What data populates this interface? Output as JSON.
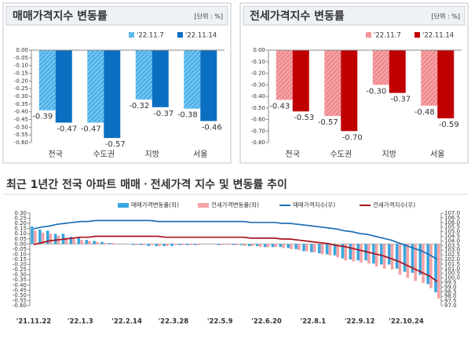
{
  "chart_data": [
    {
      "type": "bar",
      "title": "매매가격지수 변동률",
      "unit": "[단위 : %]",
      "categories": [
        "전국",
        "수도권",
        "지방",
        "서울"
      ],
      "series": [
        {
          "name": "'22.11.7",
          "color": "#4db2ea",
          "hatch": true,
          "values": [
            -0.39,
            -0.47,
            -0.32,
            -0.38
          ]
        },
        {
          "name": "'22.11.14",
          "color": "#0b6fc1",
          "values": [
            -0.47,
            -0.57,
            -0.37,
            -0.46
          ]
        }
      ],
      "ylim": [
        -0.6,
        0
      ],
      "yticks": [
        {
          "value": 0,
          "label": "0.00"
        },
        -0.05,
        {
          "value": -0.1,
          "label": "-0.10"
        },
        -0.15,
        {
          "value": -0.2,
          "label": "-0.20"
        },
        -0.25,
        {
          "value": -0.3,
          "label": "-0.30"
        },
        -0.35,
        {
          "value": -0.4,
          "label": "-0.40"
        },
        -0.45,
        {
          "value": -0.5,
          "label": "-0.50"
        },
        -0.55,
        {
          "value": -0.6,
          "label": "-0.60"
        }
      ]
    },
    {
      "type": "bar",
      "title": "전세가격지수 변동률",
      "unit": "[단위 : %]",
      "categories": [
        "전국",
        "수도권",
        "지방",
        "서울"
      ],
      "series": [
        {
          "name": "'22.11.7",
          "color": "#f08a8e",
          "hatch": true,
          "values": [
            -0.43,
            -0.57,
            -0.3,
            -0.48
          ],
          "value_labels": [
            "-0.43",
            "-0.57",
            "-0.30",
            "-0.48"
          ]
        },
        {
          "name": "'22.11.14",
          "color": "#c00000",
          "values": [
            -0.53,
            -0.7,
            -0.37,
            -0.59
          ],
          "value_labels": [
            "-0.53",
            "-0.70",
            "-0.37",
            "-0.59"
          ]
        }
      ],
      "ylim": [
        -0.8,
        0
      ],
      "yticks": [
        {
          "value": 0,
          "label": "0.00"
        },
        {
          "value": -0.1,
          "label": "-0.10"
        },
        {
          "value": -0.2,
          "label": "-0.20"
        },
        {
          "value": -0.3,
          "label": "-0.30"
        },
        {
          "value": -0.4,
          "label": "-0.40"
        },
        {
          "value": -0.5,
          "label": "-0.50"
        },
        {
          "value": -0.6,
          "label": "-0.60"
        },
        {
          "value": -0.7,
          "label": "-0.70"
        },
        {
          "value": -0.8,
          "label": "-0.80"
        }
      ]
    },
    {
      "type": "combo",
      "title": "최근 1년간 전국 아파트 매매ㆍ전세가격 지수 및 변동률 추이",
      "categories": [
        "'21.11.22",
        null,
        null,
        null,
        null,
        null,
        "'22.1.3",
        null,
        null,
        null,
        null,
        null,
        "'22.2.14",
        null,
        null,
        null,
        null,
        null,
        "'22.3.28",
        null,
        null,
        null,
        null,
        null,
        "'22.5.9",
        null,
        null,
        null,
        null,
        null,
        "'22.6.20",
        null,
        null,
        null,
        null,
        null,
        "'22.8.1",
        null,
        null,
        null,
        null,
        null,
        "'22.9.12",
        null,
        null,
        null,
        null,
        null,
        "'22.10.24",
        null,
        null,
        null,
        null
      ],
      "series": [
        {
          "name": "매매가격변동률(좌)",
          "type": "bar",
          "color": "#3aa6de",
          "values": [
            0.17,
            0.14,
            0.13,
            0.1,
            0.1,
            0.07,
            0.06,
            0.04,
            0.03,
            0.02,
            0.01,
            0.0,
            0.0,
            -0.01,
            -0.01,
            -0.02,
            -0.02,
            -0.02,
            -0.02,
            -0.01,
            -0.01,
            -0.01,
            0.0,
            0.0,
            -0.01,
            0.0,
            -0.01,
            -0.01,
            -0.02,
            -0.02,
            -0.03,
            -0.03,
            -0.03,
            -0.04,
            -0.05,
            -0.07,
            -0.08,
            -0.09,
            -0.1,
            -0.11,
            -0.14,
            -0.15,
            -0.16,
            -0.16,
            -0.19,
            -0.2,
            -0.2,
            -0.24,
            -0.27,
            -0.28,
            -0.3,
            -0.39,
            -0.47
          ]
        },
        {
          "name": "전세가격변동률(좌)",
          "type": "bar",
          "color": "#f4a3a6",
          "values": [
            0.13,
            0.11,
            0.1,
            0.08,
            0.06,
            0.05,
            0.04,
            0.03,
            0.02,
            0.01,
            0.01,
            0.0,
            0.0,
            -0.01,
            -0.01,
            -0.01,
            -0.02,
            -0.02,
            -0.01,
            -0.01,
            -0.01,
            -0.01,
            0.0,
            0.0,
            -0.01,
            -0.01,
            -0.01,
            -0.02,
            -0.02,
            -0.03,
            -0.03,
            -0.03,
            -0.04,
            -0.05,
            -0.06,
            -0.07,
            -0.08,
            -0.1,
            -0.11,
            -0.13,
            -0.16,
            -0.17,
            -0.18,
            -0.19,
            -0.22,
            -0.24,
            -0.25,
            -0.3,
            -0.33,
            -0.36,
            -0.38,
            -0.43,
            -0.53
          ]
        },
        {
          "name": "매매가격지수(우)",
          "type": "line",
          "axis": "y2",
          "color": "#1f6fb5",
          "values": [
            105.3,
            105.5,
            105.6,
            105.8,
            105.9,
            106.0,
            106.1,
            106.1,
            106.2,
            106.2,
            106.2,
            106.2,
            106.2,
            106.2,
            106.2,
            106.2,
            106.1,
            106.1,
            106.1,
            106.1,
            106.1,
            106.1,
            106.1,
            106.1,
            106.1,
            106.1,
            106.1,
            106.1,
            106.0,
            106.0,
            106.0,
            106.0,
            105.9,
            105.9,
            105.8,
            105.7,
            105.6,
            105.5,
            105.4,
            105.3,
            105.1,
            105.0,
            104.8,
            104.7,
            104.5,
            104.3,
            104.1,
            103.8,
            103.5,
            103.2,
            102.9,
            102.5,
            102.0
          ]
        },
        {
          "name": "전세가격지수(우)",
          "type": "line",
          "axis": "y2",
          "color": "#a5141e",
          "values": [
            103.6,
            103.8,
            104.0,
            104.1,
            104.2,
            104.3,
            104.4,
            104.4,
            104.5,
            104.5,
            104.5,
            104.5,
            104.5,
            104.5,
            104.5,
            104.5,
            104.5,
            104.4,
            104.4,
            104.4,
            104.4,
            104.4,
            104.4,
            104.4,
            104.4,
            104.4,
            104.4,
            104.4,
            104.3,
            104.3,
            104.3,
            104.3,
            104.2,
            104.2,
            104.1,
            104.0,
            103.9,
            103.8,
            103.7,
            103.5,
            103.4,
            103.2,
            103.0,
            102.8,
            102.6,
            102.4,
            102.1,
            101.8,
            101.4,
            101.0,
            100.6,
            100.2,
            99.6
          ]
        }
      ],
      "ylim": [
        -0.6,
        0.3
      ],
      "yticks": [
        {
          "value": 0.3,
          "label": "0.30"
        },
        0.25,
        {
          "value": 0.2,
          "label": "0.20"
        },
        0.15,
        {
          "value": 0.1,
          "label": "0.10"
        },
        0.05,
        {
          "value": 0,
          "label": "0.00"
        },
        -0.05,
        {
          "value": -0.1,
          "label": "-0.10"
        },
        -0.15,
        {
          "value": -0.2,
          "label": "-0.20"
        },
        -0.25,
        {
          "value": -0.3,
          "label": "-0.30"
        },
        -0.35,
        {
          "value": -0.4,
          "label": "-0.40"
        },
        -0.45,
        {
          "value": -0.5,
          "label": "-0.50"
        },
        -0.55,
        {
          "value": -0.6,
          "label": "-0.60"
        }
      ],
      "y2lim": [
        97,
        107
      ],
      "y2ticks": [
        {
          "value": 107,
          "label": "107.0"
        },
        106.5,
        {
          "value": 106,
          "label": "106.0"
        },
        105.5,
        {
          "value": 105,
          "label": "105.0"
        },
        104.5,
        {
          "value": 104,
          "label": "104.0"
        },
        103.5,
        {
          "value": 103,
          "label": "103.0"
        },
        102.5,
        {
          "value": 102,
          "label": "102.0"
        },
        101.5,
        {
          "value": 101,
          "label": "101.0"
        },
        100.5,
        {
          "value": 100,
          "label": "100.0"
        },
        99.5,
        {
          "value": 99,
          "label": "99.0"
        },
        98.5,
        {
          "value": 98,
          "label": "98.0"
        },
        97.5,
        {
          "value": 97,
          "label": "97.0"
        }
      ]
    }
  ]
}
